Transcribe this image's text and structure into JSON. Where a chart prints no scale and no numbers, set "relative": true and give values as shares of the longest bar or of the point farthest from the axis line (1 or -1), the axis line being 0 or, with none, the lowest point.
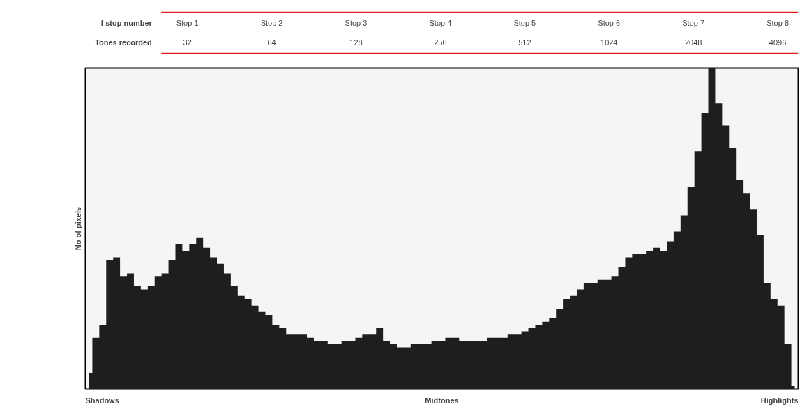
{
  "chart_data": [
    {
      "type": "other",
      "categories": [
        "Stop 1",
        "Stop 2",
        "Stop 3",
        "Stop 4",
        "Stop 5",
        "Stop 6",
        "Stop 7",
        "Stop 8"
      ],
      "annotations": [
        "f stop number",
        "Tones recorded",
        "32",
        "64",
        "128",
        "256",
        "512",
        "1024",
        "2048",
        "4096"
      ]
    },
    {
      "type": "area",
      "relative": true,
      "ylabel": "No of pixels",
      "color": "#1e1e1e",
      "annotations": [
        "Shadows",
        "Midtones",
        "Highlights"
      ],
      "categories": [
        null,
        null,
        null,
        null,
        null,
        null,
        null,
        null,
        null,
        null,
        null,
        null,
        null,
        null,
        null,
        null,
        null,
        null,
        null,
        null,
        null,
        null,
        null,
        null,
        null,
        null,
        null,
        null,
        null,
        null,
        null,
        null,
        null,
        null,
        null,
        null,
        null,
        null,
        null,
        null,
        null,
        null,
        null,
        null,
        null,
        null,
        null,
        null,
        null,
        null,
        null,
        null,
        null,
        null,
        null,
        null,
        null,
        null,
        null,
        null,
        null,
        null,
        null,
        null,
        null,
        null,
        null,
        null,
        null,
        null,
        null,
        null,
        null,
        null,
        null,
        null,
        null,
        null,
        null,
        null,
        null,
        null,
        null,
        null,
        null,
        null,
        null,
        null,
        null,
        null,
        null,
        null,
        null,
        null,
        null,
        null,
        null,
        null,
        null,
        null,
        null,
        null,
        null
      ],
      "values": [
        0.05,
        0.16,
        0.2,
        0.4,
        0.41,
        0.35,
        0.36,
        0.32,
        0.31,
        0.32,
        0.35,
        0.36,
        0.4,
        0.45,
        0.43,
        0.45,
        0.47,
        0.44,
        0.41,
        0.39,
        0.36,
        0.32,
        0.29,
        0.28,
        0.26,
        0.24,
        0.23,
        0.2,
        0.19,
        0.17,
        0.17,
        0.17,
        0.16,
        0.15,
        0.15,
        0.14,
        0.14,
        0.15,
        0.15,
        0.16,
        0.17,
        0.17,
        0.19,
        0.15,
        0.14,
        0.13,
        0.13,
        0.14,
        0.14,
        0.14,
        0.15,
        0.15,
        0.16,
        0.16,
        0.15,
        0.15,
        0.15,
        0.15,
        0.16,
        0.16,
        0.16,
        0.17,
        0.17,
        0.18,
        0.19,
        0.2,
        0.21,
        0.22,
        0.25,
        0.28,
        0.29,
        0.31,
        0.33,
        0.33,
        0.34,
        0.34,
        0.35,
        0.38,
        0.41,
        0.42,
        0.42,
        0.43,
        0.44,
        0.43,
        0.46,
        0.49,
        0.54,
        0.63,
        0.74,
        0.86,
        1,
        0.89,
        0.82,
        0.75,
        0.65,
        0.61,
        0.56,
        0.48,
        0.33,
        0.28,
        0.26,
        0.14,
        0.01
      ]
    }
  ]
}
